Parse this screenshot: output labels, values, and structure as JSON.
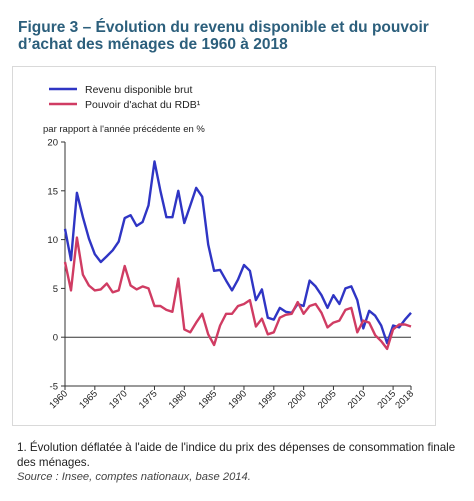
{
  "figure": {
    "title": "Figure 3 – Évolution du revenu disponible et du pouvoir d’achat des ménages de 1960 à 2018",
    "footnote": "1. Évolution déflatée à l'aide de l'indice du prix des dépenses de consommation finale des ménages.",
    "source": "Source : Insee, comptes nationaux, base 2014."
  },
  "chart_data": {
    "type": "line",
    "title": "",
    "xlabel": "",
    "ylabel": "par rapport à l'année précédente en %",
    "xlim": [
      1960,
      2018
    ],
    "ylim": [
      -5,
      20
    ],
    "y_ticks": [
      -5,
      0,
      5,
      10,
      15,
      20
    ],
    "x_ticks": [
      1960,
      1965,
      1970,
      1975,
      1980,
      1985,
      1990,
      1995,
      2000,
      2005,
      2010,
      2015,
      2018
    ],
    "grid": false,
    "legend_position": "top-left",
    "x": [
      1960,
      1961,
      1962,
      1963,
      1964,
      1965,
      1966,
      1967,
      1968,
      1969,
      1970,
      1971,
      1972,
      1973,
      1974,
      1975,
      1976,
      1977,
      1978,
      1979,
      1980,
      1981,
      1982,
      1983,
      1984,
      1985,
      1986,
      1987,
      1988,
      1989,
      1990,
      1991,
      1992,
      1993,
      1994,
      1995,
      1996,
      1997,
      1998,
      1999,
      2000,
      2001,
      2002,
      2003,
      2004,
      2005,
      2006,
      2007,
      2008,
      2009,
      2010,
      2011,
      2012,
      2013,
      2014,
      2015,
      2016,
      2017,
      2018
    ],
    "series": [
      {
        "name": "Revenu disponible brut",
        "color": "#2f35c4",
        "values": [
          11.1,
          7.9,
          14.8,
          12.3,
          10.1,
          8.5,
          7.7,
          8.3,
          8.9,
          9.8,
          12.2,
          12.5,
          11.4,
          11.8,
          13.5,
          18.0,
          15.0,
          12.3,
          12.3,
          15.0,
          11.7,
          13.5,
          15.3,
          14.4,
          9.5,
          6.8,
          6.9,
          5.8,
          4.8,
          5.9,
          7.4,
          6.8,
          3.8,
          4.9,
          2.0,
          1.8,
          3.0,
          2.6,
          2.5,
          3.4,
          3.2,
          5.8,
          5.2,
          4.3,
          3.0,
          4.3,
          3.4,
          5.0,
          5.2,
          3.8,
          0.9,
          2.7,
          2.2,
          1.2,
          -0.6,
          1.2,
          1.0,
          1.8,
          2.5
        ]
      },
      {
        "name": "Pouvoir d'achat du RDB¹",
        "color": "#d03c63",
        "values": [
          7.7,
          4.8,
          10.2,
          6.4,
          5.3,
          4.8,
          4.9,
          5.5,
          4.6,
          4.8,
          7.3,
          5.3,
          4.9,
          5.2,
          5.0,
          3.2,
          3.2,
          2.8,
          2.6,
          6.0,
          0.8,
          0.5,
          1.5,
          2.4,
          0.3,
          -0.8,
          1.2,
          2.4,
          2.4,
          3.2,
          3.4,
          3.8,
          1.1,
          1.9,
          0.3,
          0.5,
          2.0,
          2.3,
          2.4,
          3.6,
          2.4,
          3.2,
          3.4,
          2.5,
          1.0,
          1.5,
          1.7,
          2.8,
          3.0,
          0.5,
          1.7,
          1.5,
          0.2,
          -0.4,
          -1.2,
          0.8,
          1.3,
          1.3,
          1.1
        ]
      }
    ]
  }
}
